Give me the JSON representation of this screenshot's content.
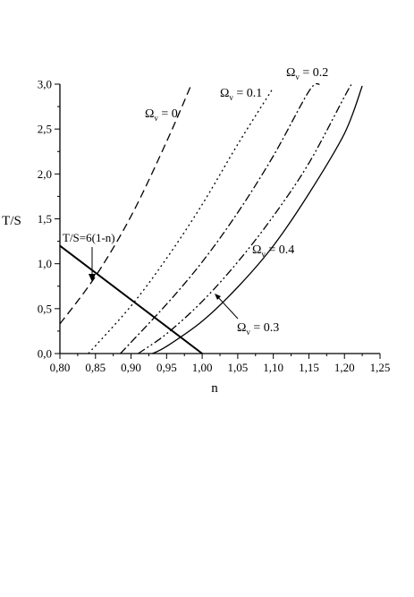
{
  "chart_data": {
    "type": "line",
    "xlabel": "n",
    "ylabel": "T/S",
    "xlim": [
      0.8,
      1.25
    ],
    "ylim": [
      0,
      3
    ],
    "xticks": [
      "0,80",
      "0,85",
      "0,90",
      "0,95",
      "1,00",
      "1,05",
      "1,10",
      "1,15",
      "1,20",
      "1,25"
    ],
    "yticks": [
      "0,0",
      "0,5",
      "1,0",
      "1,5",
      "2,0",
      "2,5",
      "3,0"
    ],
    "grid": false,
    "series": [
      {
        "label_omega": "Ω",
        "label_sub": "v",
        "label_value": "= 0",
        "style": "dashed",
        "points": [
          [
            0.8,
            0.33
          ],
          [
            0.85,
            0.86
          ],
          [
            0.9,
            1.53
          ],
          [
            0.95,
            2.36
          ],
          [
            0.985,
            3.0
          ]
        ]
      },
      {
        "label_omega": "Ω",
        "label_sub": "v",
        "label_value": "= 0.1",
        "style": "dotted",
        "points": [
          [
            0.84,
            0.0
          ],
          [
            0.9,
            0.53
          ],
          [
            0.95,
            1.06
          ],
          [
            1.0,
            1.66
          ],
          [
            1.05,
            2.33
          ],
          [
            1.1,
            2.96
          ]
        ]
      },
      {
        "label_omega": "Ω",
        "label_sub": "v",
        "label_value": "= 0.2",
        "style": "dashdot",
        "points": [
          [
            0.885,
            0.0
          ],
          [
            0.95,
            0.55
          ],
          [
            1.0,
            1.02
          ],
          [
            1.05,
            1.57
          ],
          [
            1.1,
            2.2
          ],
          [
            1.15,
            2.92
          ],
          [
            1.165,
            3.0
          ]
        ]
      },
      {
        "label_omega": "Ω",
        "label_sub": "v",
        "label_value": "= 0.3",
        "style": "dashdotdot",
        "points": [
          [
            0.91,
            0.0
          ],
          [
            0.95,
            0.22
          ],
          [
            1.0,
            0.58
          ],
          [
            1.05,
            1.02
          ],
          [
            1.1,
            1.53
          ],
          [
            1.15,
            2.12
          ],
          [
            1.2,
            2.86
          ],
          [
            1.21,
            3.0
          ]
        ]
      },
      {
        "label_omega": "Ω",
        "label_sub": "v",
        "label_value": "= 0.4",
        "style": "solid",
        "points": [
          [
            0.93,
            0.0
          ],
          [
            0.95,
            0.08
          ],
          [
            1.0,
            0.36
          ],
          [
            1.05,
            0.74
          ],
          [
            1.1,
            1.2
          ],
          [
            1.15,
            1.78
          ],
          [
            1.2,
            2.45
          ],
          [
            1.225,
            2.98
          ]
        ]
      },
      {
        "label": "T/S=6(1-n)",
        "style": "solid-bold",
        "points": [
          [
            0.8,
            1.2
          ],
          [
            1.0,
            0.0
          ]
        ]
      }
    ],
    "colors": {
      "line": "#000000",
      "background": "#ffffff"
    }
  }
}
